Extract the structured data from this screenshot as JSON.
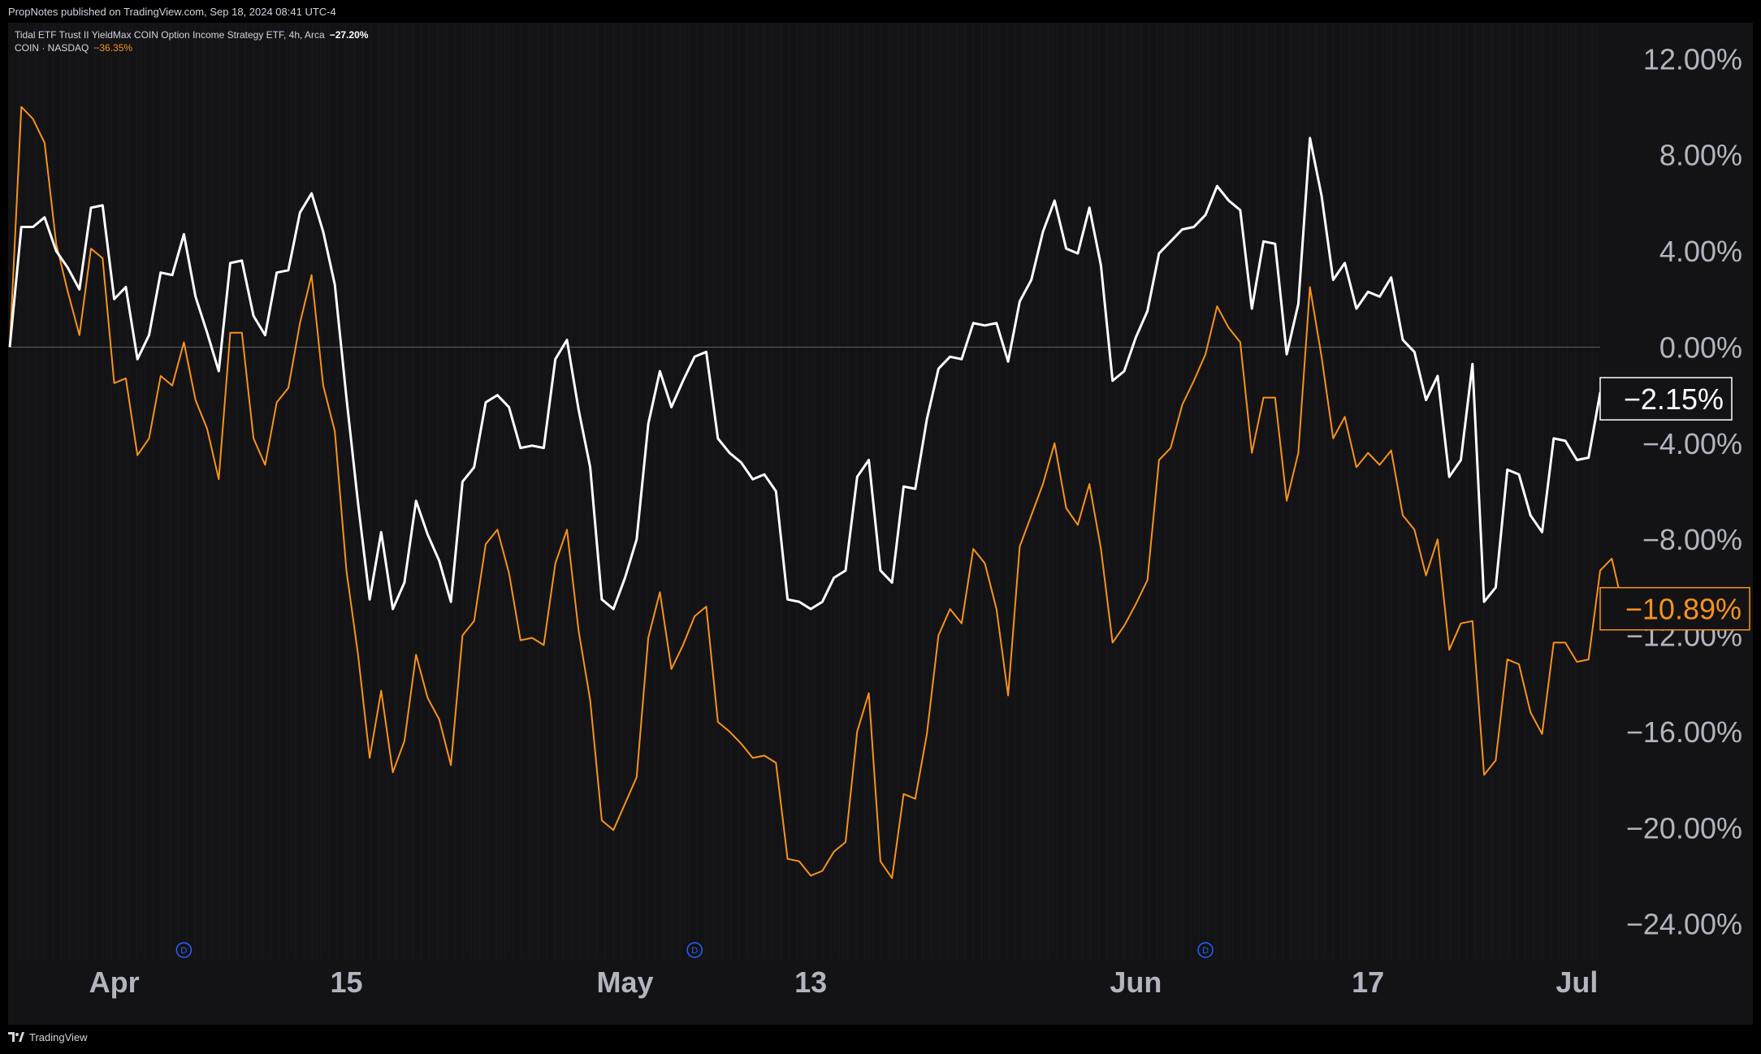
{
  "header": {
    "published": "PropNotes published on TradingView.com, Sep 18, 2024 08:41 UTC-4"
  },
  "legend": {
    "main_symbol": "Tidal ETF Trust II YieldMax COIN Option Income Strategy ETF, 4h, Arca",
    "main_change": "−27.20%",
    "compare_symbol": "COIN · NASDAQ",
    "compare_change": "−36.35%"
  },
  "footer": {
    "brand": "TradingView"
  },
  "colors": {
    "background": "#131316",
    "frame": "#000000",
    "main_line": "#ffffff",
    "compare_line": "#f7931a",
    "zero_line": "#5d606b",
    "axis_text": "#b2b5be",
    "dividend_marker": "#2962ff"
  },
  "chart_data": {
    "type": "line",
    "y_unit": "%",
    "ylim": [
      -25.5,
      13.5
    ],
    "y_ticks": [
      "12.00%",
      "8.00%",
      "4.00%",
      "0.00%",
      "−4.00%",
      "−8.00%",
      "−12.00%",
      "−16.00%",
      "−20.00%",
      "−24.00%"
    ],
    "y_tick_values": [
      12,
      8,
      4,
      0,
      -4,
      -8,
      -12,
      -16,
      -20,
      -24
    ],
    "x_ticks": [
      {
        "label": "Apr",
        "index": 9
      },
      {
        "label": "15",
        "index": 29
      },
      {
        "label": "May",
        "index": 53
      },
      {
        "label": "13",
        "index": 69
      },
      {
        "label": "Jun",
        "index": 97
      },
      {
        "label": "17",
        "index": 117
      },
      {
        "label": "Jul",
        "index": 135
      }
    ],
    "x_range": [
      0,
      137
    ],
    "zero_line": 0,
    "dividend_markers": [
      {
        "label": "D",
        "index": 15
      },
      {
        "label": "D",
        "index": 59
      },
      {
        "label": "D",
        "index": 103
      }
    ],
    "series": [
      {
        "name": "Tidal ETF Trust II YieldMax COIN Option Income Strategy ETF",
        "color": "#ffffff",
        "last_value_label": "−2.15%",
        "values": [
          0,
          5,
          5,
          5.4,
          4,
          3.3,
          2.4,
          5.8,
          5.9,
          2,
          2.5,
          -0.5,
          0.5,
          3.1,
          3,
          4.7,
          2.1,
          0.6,
          -1,
          3.5,
          3.6,
          1.3,
          0.5,
          3.1,
          3.2,
          5.6,
          6.4,
          4.8,
          2.6,
          -2.1,
          -6.5,
          -10.5,
          -7.7,
          -10.9,
          -9.8,
          -6.4,
          -7.8,
          -8.9,
          -10.6,
          -5.6,
          -5,
          -2.3,
          -2,
          -2.5,
          -4.2,
          -4.1,
          -4.2,
          -0.5,
          0.3,
          -2.6,
          -5,
          -10.5,
          -10.9,
          -9.6,
          -8,
          -3.2,
          -1,
          -2.5,
          -1.4,
          -0.4,
          -0.2,
          -3.8,
          -4.4,
          -4.8,
          -5.5,
          -5.3,
          -6,
          -10.5,
          -10.6,
          -10.9,
          -10.6,
          -9.6,
          -9.3,
          -5.4,
          -4.7,
          -9.3,
          -9.8,
          -5.8,
          -5.9,
          -3,
          -0.9,
          -0.4,
          -0.5,
          1,
          0.9,
          1,
          -0.6,
          1.9,
          2.8,
          4.8,
          6.1,
          4.1,
          3.9,
          5.8,
          3.4,
          -1.4,
          -1,
          0.4,
          1.5,
          3.9,
          4.4,
          4.9,
          5,
          5.5,
          6.7,
          6.1,
          5.7,
          1.6,
          4.4,
          4.3,
          -0.3,
          1.8,
          8.7,
          6.3,
          2.8,
          3.5,
          1.6,
          2.3,
          2.1,
          2.9,
          0.3,
          -0.2,
          -2.2,
          -1.2,
          -5.4,
          -4.7,
          -0.7,
          -10.6,
          -10,
          -5.1,
          -5.3,
          -7,
          -7.7,
          -3.8,
          -3.9,
          -4.7,
          -4.6,
          -1.9,
          -1.7,
          -2.15
        ]
      },
      {
        "name": "COIN · NASDAQ",
        "color": "#f7931a",
        "last_value_label": "−10.89%",
        "values": [
          0,
          10,
          9.5,
          8.5,
          4.3,
          2.3,
          0.5,
          4.1,
          3.7,
          -1.5,
          -1.3,
          -4.5,
          -3.8,
          -1.2,
          -1.6,
          0.2,
          -2.2,
          -3.4,
          -5.5,
          0.6,
          0.6,
          -3.8,
          -4.9,
          -2.3,
          -1.7,
          1,
          3,
          -1.6,
          -3.5,
          -9.3,
          -12.8,
          -17.1,
          -14.3,
          -17.7,
          -16.4,
          -12.8,
          -14.6,
          -15.5,
          -17.4,
          -12,
          -11.4,
          -8.2,
          -7.6,
          -9.4,
          -12.2,
          -12.1,
          -12.4,
          -9,
          -7.6,
          -11.8,
          -14.7,
          -19.7,
          -20.1,
          -19,
          -17.9,
          -12.1,
          -10.2,
          -13.4,
          -12.4,
          -11.2,
          -10.8,
          -15.6,
          -16,
          -16.5,
          -17.1,
          -17,
          -17.3,
          -21.3,
          -21.4,
          -22,
          -21.8,
          -21,
          -20.6,
          -16,
          -14.4,
          -21.4,
          -22.1,
          -18.6,
          -18.8,
          -16.1,
          -12,
          -10.9,
          -11.5,
          -8.4,
          -9,
          -10.9,
          -14.5,
          -8.3,
          -7,
          -5.7,
          -4,
          -6.7,
          -7.4,
          -5.7,
          -8.4,
          -12.3,
          -11.6,
          -10.7,
          -9.7,
          -4.7,
          -4.2,
          -2.4,
          -1.4,
          -0.3,
          1.7,
          0.8,
          0.2,
          -4.4,
          -2.1,
          -2.1,
          -6.4,
          -4.4,
          2.5,
          -0.4,
          -3.8,
          -2.9,
          -5,
          -4.4,
          -4.9,
          -4.3,
          -7,
          -7.6,
          -9.5,
          -8,
          -12.6,
          -11.5,
          -11.4,
          -17.8,
          -17.2,
          -13,
          -13.2,
          -15.2,
          -16.1,
          -12.3,
          -12.3,
          -13.1,
          -13,
          -9.3,
          -8.8,
          -10.89
        ]
      }
    ]
  }
}
